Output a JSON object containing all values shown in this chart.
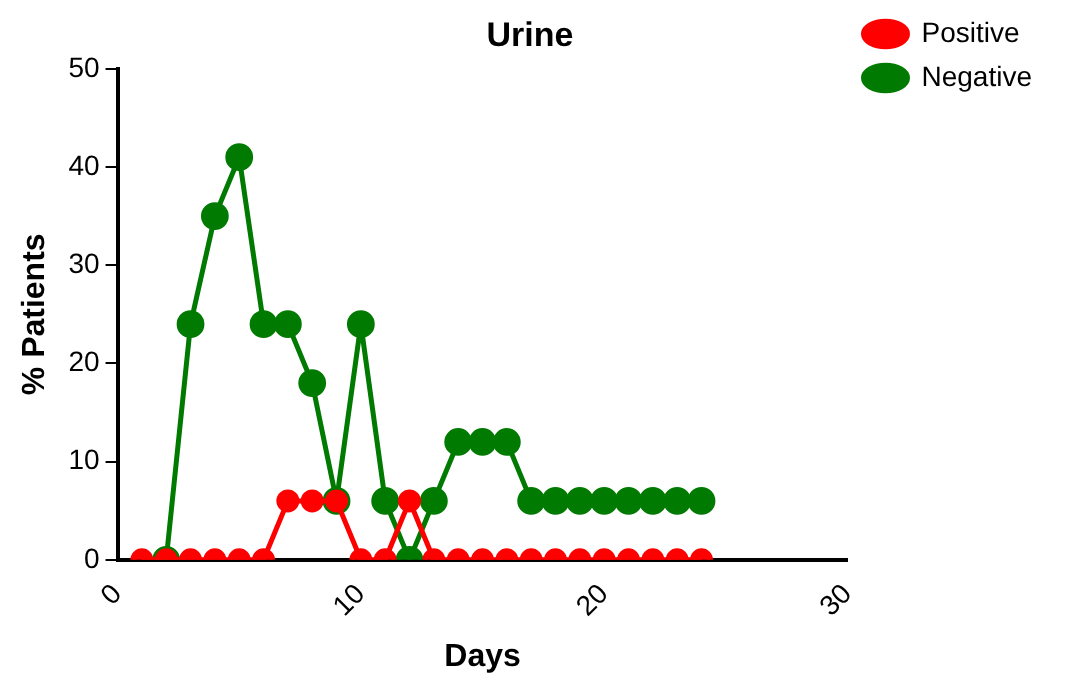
{
  "chart_data": {
    "type": "line",
    "title": "Urine",
    "xlabel": "Days",
    "ylabel": "% Patients",
    "xlim": [
      0,
      30
    ],
    "xticks": [
      0,
      10,
      20,
      30
    ],
    "ylim": [
      0,
      50
    ],
    "yticks": [
      0,
      10,
      20,
      30,
      40,
      50
    ],
    "grid": false,
    "legend": "right",
    "marker": "circle",
    "line_style": "solid",
    "series": [
      {
        "name": "Positive",
        "color": "#ff0000",
        "x": [
          1,
          2,
          3,
          4,
          5,
          6,
          7,
          8,
          9,
          10,
          11,
          12,
          13,
          14,
          15,
          16,
          17,
          18,
          19,
          20,
          21,
          22,
          23,
          24
        ],
        "values": [
          0,
          0,
          0,
          0,
          0,
          0,
          6,
          6,
          6,
          0,
          0,
          6,
          0,
          0,
          0,
          0,
          0,
          0,
          0,
          0,
          0,
          0,
          0,
          0
        ]
      },
      {
        "name": "Negative",
        "color": "#007a00",
        "x": [
          2,
          3,
          4,
          5,
          6,
          7,
          8,
          9,
          10,
          11,
          12,
          13,
          14,
          15,
          16,
          17,
          18,
          19,
          20,
          21,
          22,
          23,
          24
        ],
        "values": [
          0,
          24,
          35,
          41,
          24,
          24,
          18,
          6,
          24,
          6,
          0,
          6,
          12,
          12,
          12,
          6,
          6,
          6,
          6,
          6,
          6,
          6,
          6
        ]
      }
    ]
  }
}
